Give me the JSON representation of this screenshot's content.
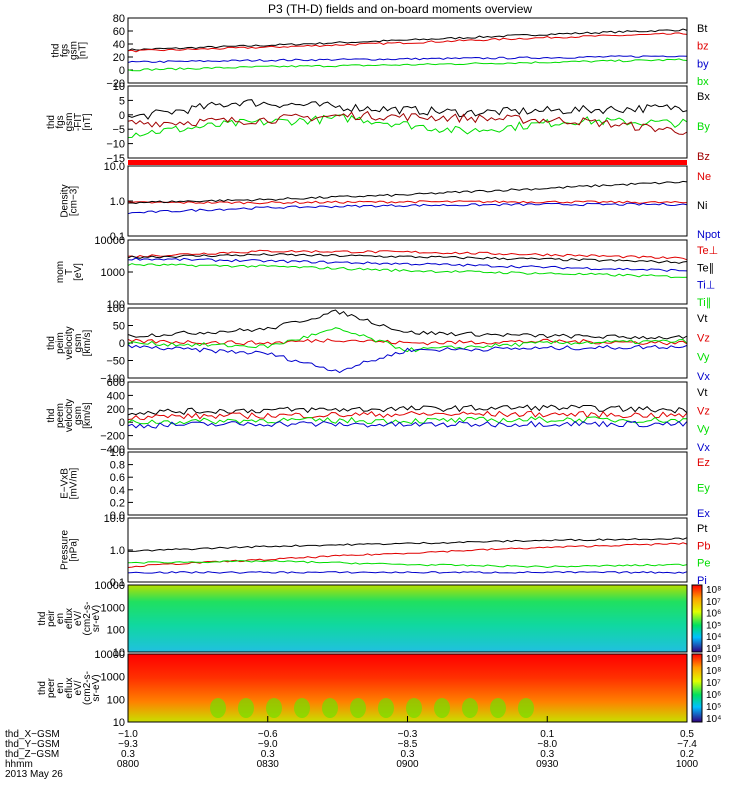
{
  "title": "P3 (TH-D) fields and on-board moments overview",
  "colors": {
    "black": "#000000",
    "red": "#e00000",
    "darkred": "#a00000",
    "green": "#00dd00",
    "blue": "#0000cc",
    "divider": "#ff0000"
  },
  "chart_data": [
    {
      "type": "line",
      "ylabel": [
        "thd",
        "fgs",
        "gsm",
        "[nT]"
      ],
      "yticks": [
        "80",
        "60",
        "40",
        "20",
        "0",
        "−20"
      ],
      "ylim": [
        -20,
        80
      ],
      "series": [
        {
          "name": "Bt",
          "color": "black",
          "x": [
            0.0,
            0.5,
            1.0,
            1.5,
            2.0
          ],
          "y": [
            31,
            38,
            46,
            55,
            62
          ]
        },
        {
          "name": "bz",
          "color": "red",
          "x": [
            0.0,
            0.5,
            1.0,
            1.5,
            2.0
          ],
          "y": [
            29,
            35,
            42,
            50,
            56
          ]
        },
        {
          "name": "by",
          "color": "blue",
          "x": [
            0.0,
            0.5,
            1.0,
            1.5,
            2.0
          ],
          "y": [
            12,
            15,
            17,
            19,
            22
          ]
        },
        {
          "name": "bx",
          "color": "green",
          "x": [
            0.0,
            0.5,
            1.0,
            1.5,
            2.0
          ],
          "y": [
            0,
            5,
            8,
            12,
            16
          ]
        }
      ]
    },
    {
      "type": "line",
      "ylabel": [
        "thd",
        "fgs",
        "gsm",
        "-FIT",
        "[nT]"
      ],
      "yticks": [
        "10",
        "5",
        "0",
        "−5",
        "−10",
        "−15"
      ],
      "ylim": [
        -17,
        10
      ],
      "series": [
        {
          "name": "Bx",
          "color": "black",
          "x": [
            0.0,
            0.4,
            0.8,
            1.2,
            1.6,
            2.0
          ],
          "y": [
            -2,
            4,
            2,
            0,
            1,
            2
          ]
        },
        {
          "name": "By",
          "color": "green",
          "x": [
            0.0,
            0.4,
            0.8,
            1.2,
            1.6,
            2.0
          ],
          "y": [
            -8,
            -4,
            -2,
            -7,
            -3,
            -4
          ]
        },
        {
          "name": "Bz",
          "color": "darkred",
          "x": [
            0.0,
            0.4,
            0.8,
            1.2,
            1.6,
            2.0
          ],
          "y": [
            -4,
            -3,
            -1,
            -2,
            -3,
            -7
          ]
        }
      ]
    },
    {
      "type": "line",
      "ylabel": [
        "Density",
        "[cm−3]"
      ],
      "yticks": [
        "10.0",
        "1.0",
        "0.1"
      ],
      "ylim": [
        0.1,
        10
      ],
      "log": true,
      "series": [
        {
          "name": "Ne",
          "color": "red",
          "x": [
            0.0,
            0.5,
            1.0,
            1.5,
            2.0
          ],
          "y": [
            0.9,
            0.9,
            0.95,
            0.95,
            0.9
          ]
        },
        {
          "name": "Ni",
          "color": "black",
          "x": [
            0.0,
            0.5,
            1.0,
            1.5,
            2.0
          ],
          "y": [
            0.9,
            1.1,
            1.5,
            2.3,
            3.5
          ]
        },
        {
          "name": "Npot",
          "color": "blue",
          "x": [
            0.0,
            0.5,
            1.0,
            1.5,
            2.0
          ],
          "y": [
            0.45,
            0.65,
            0.75,
            0.8,
            0.8
          ]
        }
      ]
    },
    {
      "type": "line",
      "ylabel": [
        "mom",
        "T",
        "[eV]"
      ],
      "yticks": [
        "10000",
        "1000",
        "100"
      ],
      "ylim": [
        100,
        10000
      ],
      "log": true,
      "series": [
        {
          "name": "Te⊥",
          "color": "red",
          "x": [
            0.0,
            0.5,
            1.0,
            1.5,
            2.0
          ],
          "y": [
            3000,
            4500,
            4200,
            3500,
            2600
          ]
        },
        {
          "name": "Te∥",
          "color": "black",
          "x": [
            0.0,
            0.5,
            1.0,
            1.5,
            2.0
          ],
          "y": [
            2900,
            3500,
            3000,
            2500,
            2000
          ]
        },
        {
          "name": "Ti⊥",
          "color": "blue",
          "x": [
            0.0,
            0.5,
            1.0,
            1.5,
            2.0
          ],
          "y": [
            2600,
            2200,
            1800,
            1400,
            1100
          ]
        },
        {
          "name": "Ti∥",
          "color": "green",
          "x": [
            0.0,
            0.5,
            1.0,
            1.5,
            2.0
          ],
          "y": [
            1700,
            1500,
            1100,
            900,
            700
          ]
        }
      ]
    },
    {
      "type": "line",
      "ylabel": [
        "thd",
        "peim",
        "velocity",
        "gsm",
        "[km/s]"
      ],
      "yticks": [
        "100",
        "50",
        "0",
        "−50",
        "−100"
      ],
      "ylim": [
        -100,
        100
      ],
      "series": [
        {
          "name": "Vt",
          "color": "black",
          "x": [
            0.0,
            0.5,
            0.75,
            1.0,
            1.5,
            2.0
          ],
          "y": [
            20,
            40,
            90,
            30,
            20,
            15
          ]
        },
        {
          "name": "Vz",
          "color": "red",
          "x": [
            0.0,
            0.5,
            0.75,
            1.0,
            1.5,
            2.0
          ],
          "y": [
            5,
            0,
            10,
            0,
            5,
            0
          ]
        },
        {
          "name": "Vy",
          "color": "green",
          "x": [
            0.0,
            0.5,
            0.75,
            1.0,
            1.5,
            2.0
          ],
          "y": [
            0,
            -10,
            40,
            -20,
            0,
            5
          ]
        },
        {
          "name": "Vx",
          "color": "blue",
          "x": [
            0.0,
            0.5,
            0.75,
            1.0,
            1.5,
            2.0
          ],
          "y": [
            -10,
            -30,
            -80,
            -20,
            -15,
            -10
          ]
        }
      ]
    },
    {
      "type": "line",
      "ylabel": [
        "thd",
        "peem",
        "velocity",
        "gsm",
        "[km/s]"
      ],
      "yticks": [
        "600",
        "400",
        "200",
        "0",
        "−200",
        "−400"
      ],
      "ylim": [
        -400,
        600
      ],
      "series": [
        {
          "name": "Vt",
          "color": "black",
          "x": [
            0.0,
            0.5,
            1.0,
            1.5,
            2.0
          ],
          "y": [
            150,
            180,
            200,
            220,
            180
          ]
        },
        {
          "name": "Vz",
          "color": "red",
          "x": [
            0.0,
            0.5,
            1.0,
            1.5,
            2.0
          ],
          "y": [
            80,
            100,
            120,
            120,
            100
          ]
        },
        {
          "name": "Vy",
          "color": "green",
          "x": [
            0.0,
            0.5,
            1.0,
            1.5,
            2.0
          ],
          "y": [
            0,
            30,
            20,
            40,
            30
          ]
        },
        {
          "name": "Vx",
          "color": "blue",
          "x": [
            0.0,
            0.5,
            1.0,
            1.5,
            2.0
          ],
          "y": [
            -50,
            -20,
            -40,
            -20,
            -30
          ]
        }
      ]
    },
    {
      "type": "line",
      "ylabel": [
        "E−VxB",
        "[mV/m]"
      ],
      "yticks": [
        "1.0",
        "0.8",
        "0.6",
        "0.4",
        "0.2",
        "0.0"
      ],
      "ylim": [
        0,
        1
      ],
      "series": [
        {
          "name": "Ez",
          "color": "red",
          "x": [],
          "y": []
        },
        {
          "name": "Ey",
          "color": "green",
          "x": [],
          "y": []
        },
        {
          "name": "Ex",
          "color": "blue",
          "x": [],
          "y": []
        }
      ]
    },
    {
      "type": "line",
      "ylabel": [
        "Pressure",
        "[nPa]"
      ],
      "yticks": [
        "10.0",
        "1.0",
        "0.1"
      ],
      "ylim": [
        0.1,
        10
      ],
      "log": true,
      "series": [
        {
          "name": "Pt",
          "color": "black",
          "x": [
            0.0,
            0.5,
            1.0,
            1.5,
            2.0
          ],
          "y": [
            0.9,
            1.3,
            1.6,
            2.0,
            2.3
          ]
        },
        {
          "name": "Pb",
          "color": "red",
          "x": [
            0.0,
            0.5,
            1.0,
            1.5,
            2.0
          ],
          "y": [
            0.3,
            0.5,
            0.8,
            1.2,
            1.6
          ]
        },
        {
          "name": "Pe",
          "color": "green",
          "x": [
            0.0,
            0.5,
            1.0,
            1.5,
            2.0
          ],
          "y": [
            0.4,
            0.45,
            0.35,
            0.3,
            0.35
          ]
        },
        {
          "name": "Pi",
          "color": "blue",
          "x": [
            0.0,
            0.5,
            1.0,
            1.5,
            2.0
          ],
          "y": [
            0.2,
            0.2,
            0.2,
            0.2,
            0.2
          ]
        }
      ]
    },
    {
      "type": "heatmap",
      "ylabel": [
        "thd",
        "peir",
        "en",
        "eflux",
        "eV/",
        "(cm2-s-",
        "sr-eV)"
      ],
      "yticks": [
        "10000",
        "1000",
        "100",
        "10"
      ],
      "colorbar": [
        "10⁸",
        "10⁷",
        "10⁶",
        "10⁵",
        "10⁴",
        "10³"
      ]
    },
    {
      "type": "heatmap",
      "ylabel": [
        "thd",
        "peer",
        "en",
        "eflux",
        "eV/",
        "(cm2-s-",
        "sr-eV)"
      ],
      "yticks": [
        "10000",
        "1000",
        "100",
        "10"
      ],
      "colorbar": [
        "10⁹",
        "10⁸",
        "10⁷",
        "10⁶",
        "10⁵",
        "10⁴"
      ]
    }
  ],
  "xaxis": {
    "ticks": [
      "0800",
      "0830",
      "0900",
      "0930",
      "1000"
    ],
    "rows": [
      {
        "label": "thd_X−GSM",
        "values": [
          "−1.0",
          "−0.6",
          "−0.3",
          "0.1",
          "0.5"
        ]
      },
      {
        "label": "thd_Y−GSM",
        "values": [
          "−9.3",
          "−9.0",
          "−8.5",
          "−8.0",
          "−7.4"
        ]
      },
      {
        "label": "thd_Z−GSM",
        "values": [
          "0.3",
          "0.3",
          "0.3",
          "0.3",
          "0.2"
        ]
      },
      {
        "label": "hhmm",
        "values": [
          "0800",
          "0830",
          "0900",
          "0930",
          "1000"
        ]
      }
    ],
    "date": "2013 May 26"
  }
}
